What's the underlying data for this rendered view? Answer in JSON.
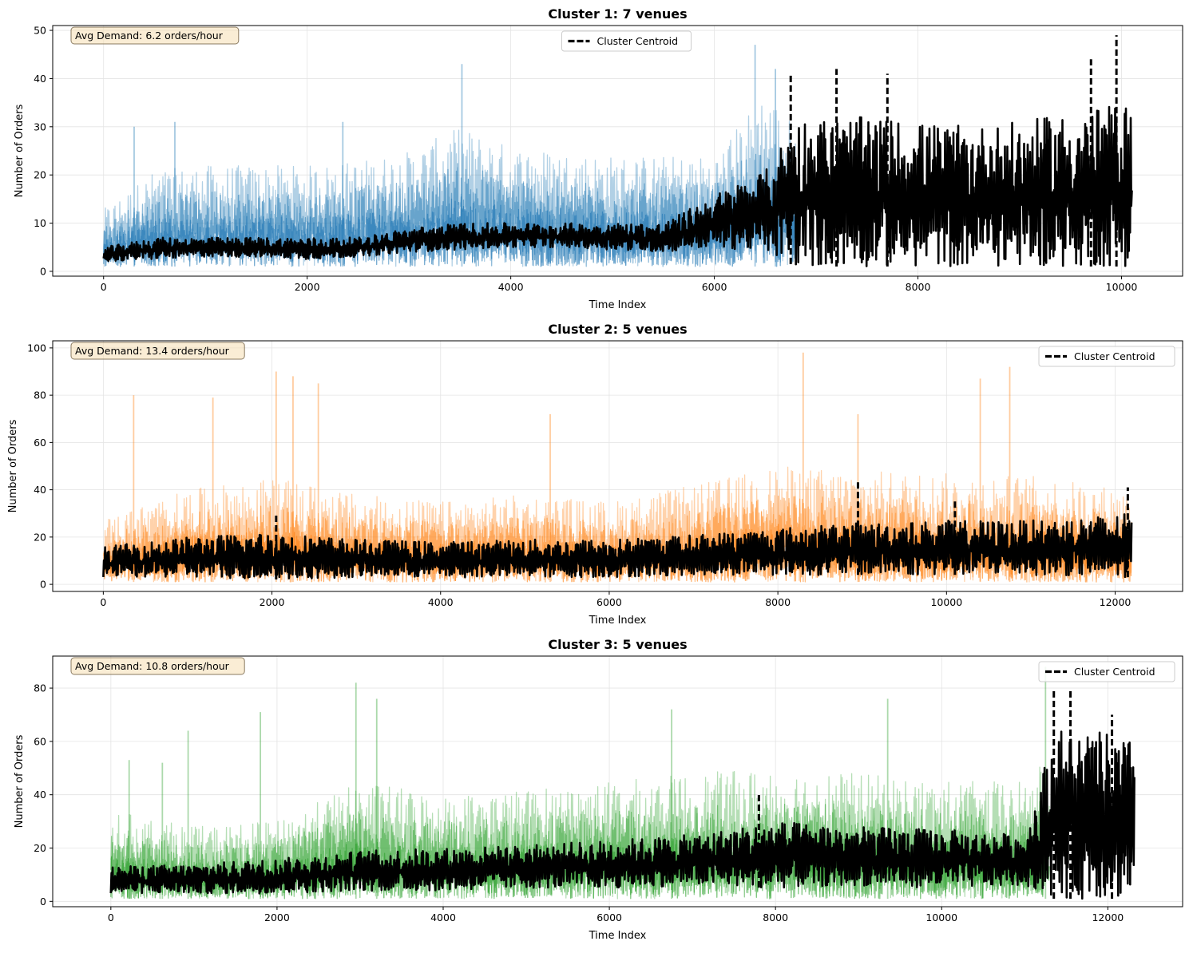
{
  "figure": {
    "colors": {
      "cluster1": "#1f77b4",
      "cluster2": "#ff7f0e",
      "cluster3": "#2ca02c",
      "centroid": "#000000",
      "annotation_bg": "#f5deb3",
      "annotation_border": "#8a7a60"
    }
  },
  "chart_data": [
    {
      "type": "line",
      "title": "Cluster 1: 7 venues",
      "xlabel": "Time Index",
      "ylabel": "Number of Orders",
      "xlim": [
        -500,
        10600
      ],
      "ylim": [
        -1,
        51
      ],
      "xticks": [
        0,
        2000,
        4000,
        6000,
        8000,
        10000
      ],
      "yticks": [
        0,
        10,
        20,
        30,
        40,
        50
      ],
      "grid": true,
      "legend": {
        "location": "top-center",
        "entries": [
          "Cluster Centroid"
        ]
      },
      "annotation": "Avg Demand: 6.2 orders/hour",
      "series": [
        {
          "role": "venues",
          "color": "#1f77b4",
          "x_end": 10100,
          "x": [
            0,
            500,
            1000,
            1500,
            2000,
            2500,
            3000,
            3500,
            4000,
            4500,
            5000,
            5500,
            6000,
            6500,
            6800
          ],
          "low": [
            1,
            1,
            1,
            1,
            1,
            1,
            1,
            1,
            1,
            1,
            1,
            1,
            1,
            1,
            1
          ],
          "high": [
            13,
            21,
            22,
            22,
            22,
            23,
            25,
            30,
            26,
            25,
            24,
            24,
            24,
            38,
            30
          ],
          "peaks": [
            [
              300,
              30
            ],
            [
              700,
              31
            ],
            [
              2350,
              31
            ],
            [
              3520,
              43
            ],
            [
              6400,
              47
            ],
            [
              6600,
              42
            ]
          ]
        },
        {
          "name": "Cluster Centroid",
          "color": "#000000",
          "style": "dashed",
          "x": [
            0,
            500,
            1000,
            1500,
            2000,
            2500,
            3000,
            3500,
            4000,
            4500,
            5000,
            5500,
            6000,
            6500,
            6800,
            7500,
            8000,
            8500,
            9000,
            9500,
            10100
          ],
          "low": [
            2,
            2.5,
            3,
            3,
            2.5,
            3,
            4,
            4.5,
            5,
            5,
            4.5,
            4,
            5,
            4,
            1,
            1,
            1,
            1,
            1,
            1,
            1
          ],
          "high": [
            5,
            7,
            7,
            7,
            7,
            7,
            9,
            10,
            10,
            10,
            10,
            10,
            16,
            21,
            32,
            32,
            31,
            30,
            31,
            33,
            35
          ],
          "peaks": [
            [
              6750,
              41
            ],
            [
              7200,
              42
            ],
            [
              7700,
              41
            ],
            [
              9700,
              44
            ],
            [
              9950,
              49
            ]
          ]
        }
      ]
    },
    {
      "type": "line",
      "title": "Cluster 2: 5 venues",
      "xlabel": "Time Index",
      "ylabel": "Number of Orders",
      "xlim": [
        -600,
        12800
      ],
      "ylim": [
        -3,
        103
      ],
      "xticks": [
        0,
        2000,
        4000,
        6000,
        8000,
        10000,
        12000
      ],
      "yticks": [
        0,
        20,
        40,
        60,
        80,
        100
      ],
      "grid": true,
      "legend": {
        "location": "top-right",
        "entries": [
          "Cluster Centroid"
        ]
      },
      "annotation": "Avg Demand: 13.4 orders/hour",
      "series": [
        {
          "role": "venues",
          "color": "#ff7f0e",
          "x_end": 12200,
          "x": [
            0,
            1000,
            2000,
            3000,
            4000,
            5000,
            6000,
            7000,
            8000,
            9000,
            10000,
            11000,
            12200
          ],
          "low": [
            1,
            1,
            1,
            1,
            1,
            1,
            1,
            1,
            1,
            1,
            1,
            1,
            1
          ],
          "high": [
            28,
            40,
            45,
            38,
            35,
            38,
            35,
            42,
            50,
            48,
            47,
            46,
            40
          ],
          "peaks": [
            [
              360,
              80
            ],
            [
              1300,
              79
            ],
            [
              2050,
              90
            ],
            [
              2250,
              88
            ],
            [
              2550,
              85
            ],
            [
              5300,
              72
            ],
            [
              8300,
              98
            ],
            [
              8950,
              72
            ],
            [
              10400,
              87
            ],
            [
              10750,
              92
            ]
          ]
        },
        {
          "name": "Cluster Centroid",
          "color": "#000000",
          "style": "dashed",
          "x": [
            0,
            1000,
            2000,
            3000,
            4000,
            5000,
            6000,
            7000,
            8000,
            9000,
            10000,
            11000,
            12200
          ],
          "low": [
            3,
            3,
            2,
            3,
            3,
            3,
            3,
            4,
            4,
            4,
            4,
            4,
            3
          ],
          "high": [
            16,
            20,
            22,
            19,
            18,
            19,
            19,
            21,
            24,
            26,
            27,
            27,
            30
          ],
          "peaks": [
            [
              2050,
              30
            ],
            [
              8950,
              44
            ],
            [
              10100,
              36
            ],
            [
              12150,
              41
            ]
          ]
        }
      ]
    },
    {
      "type": "line",
      "title": "Cluster 3: 5 venues",
      "xlabel": "Time Index",
      "ylabel": "Number of Orders",
      "xlim": [
        -700,
        12900
      ],
      "ylim": [
        -2,
        92
      ],
      "xticks": [
        0,
        2000,
        4000,
        6000,
        8000,
        10000,
        12000
      ],
      "yticks": [
        0,
        20,
        40,
        60,
        80
      ],
      "grid": true,
      "legend": {
        "location": "top-right",
        "entries": [
          "Cluster Centroid"
        ]
      },
      "annotation": "Avg Demand: 10.8 orders/hour",
      "series": [
        {
          "role": "venues",
          "color": "#2ca02c",
          "x_end": 11300,
          "x": [
            0,
            1000,
            2000,
            3000,
            4000,
            5000,
            6000,
            7000,
            8000,
            9000,
            10000,
            11000,
            11300
          ],
          "low": [
            1,
            1,
            1,
            1,
            1,
            1,
            1,
            1,
            1,
            1,
            1,
            1,
            1
          ],
          "high": [
            34,
            28,
            30,
            45,
            40,
            42,
            45,
            48,
            50,
            48,
            45,
            45,
            55
          ],
          "peaks": [
            [
              220,
              53
            ],
            [
              620,
              52
            ],
            [
              930,
              64
            ],
            [
              1800,
              71
            ],
            [
              2950,
              82
            ],
            [
              3200,
              76
            ],
            [
              6750,
              72
            ],
            [
              9350,
              76
            ],
            [
              11250,
              88
            ]
          ]
        },
        {
          "name": "Cluster Centroid",
          "color": "#000000",
          "style": "dashed",
          "x": [
            0,
            1000,
            2000,
            3000,
            4000,
            5000,
            6000,
            7000,
            8000,
            9000,
            10000,
            11000,
            11350,
            12000,
            12320
          ],
          "low": [
            3,
            3,
            3,
            4,
            4,
            5,
            5,
            6,
            5,
            6,
            5,
            6,
            1,
            1,
            1
          ],
          "high": [
            13,
            14,
            16,
            19,
            20,
            21,
            23,
            25,
            30,
            28,
            27,
            25,
            65,
            63,
            60
          ],
          "peaks": [
            [
              7800,
              41
            ],
            [
              11350,
              79
            ],
            [
              11550,
              79
            ],
            [
              12050,
              70
            ]
          ]
        }
      ]
    }
  ]
}
